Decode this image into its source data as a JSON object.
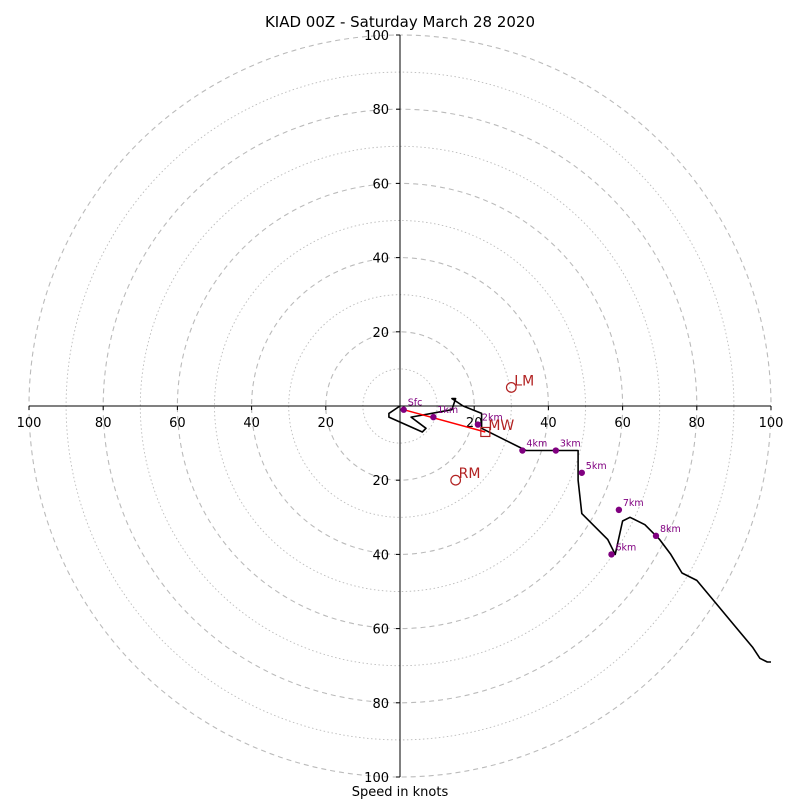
{
  "chart_data": {
    "type": "hodograph",
    "title": "KIAD 00Z - Saturday March 28 2020",
    "xlabel": "Speed in knots",
    "range_max": 100,
    "ring_major_step": 20,
    "ring_minor_step": 10,
    "axis_tick_labels": [
      "100",
      "80",
      "60",
      "40",
      "20",
      "",
      "20",
      "40",
      "60",
      "80",
      "100"
    ],
    "grid": true,
    "colors": {
      "trace": "#000000",
      "height_points": "#800080",
      "motion": "#b22222",
      "mean_wind_line": "#ff0000",
      "grid": "#bbbbbb"
    },
    "hodograph_trace": [
      [
        0,
        0
      ],
      [
        -3,
        -2
      ],
      [
        -3,
        -3
      ],
      [
        6,
        -7
      ],
      [
        7,
        -6
      ],
      [
        3,
        -3
      ],
      [
        14,
        -1
      ],
      [
        15,
        2
      ],
      [
        14,
        2
      ],
      [
        17,
        0
      ],
      [
        22,
        -2
      ],
      [
        22,
        -5
      ],
      [
        22,
        -6
      ],
      [
        34,
        -12
      ],
      [
        42,
        -12
      ],
      [
        48,
        -12
      ],
      [
        48,
        -20
      ],
      [
        49,
        -29
      ],
      [
        56,
        -36
      ],
      [
        58,
        -40
      ],
      [
        60,
        -31
      ],
      [
        62,
        -30
      ],
      [
        66,
        -32
      ],
      [
        70,
        -36
      ],
      [
        73,
        -40
      ],
      [
        76,
        -45
      ],
      [
        80,
        -47
      ],
      [
        85,
        -53
      ],
      [
        90,
        -59
      ],
      [
        95,
        -65
      ],
      [
        97,
        -68
      ],
      [
        99,
        -69
      ],
      [
        100,
        -69
      ]
    ],
    "height_markers": [
      {
        "label": "Sfc",
        "u": 1,
        "v": -1
      },
      {
        "label": "1km",
        "u": 9,
        "v": -3
      },
      {
        "label": "2km",
        "u": 21,
        "v": -5
      },
      {
        "label": "3km",
        "u": 42,
        "v": -12
      },
      {
        "label": "4km",
        "u": 33,
        "v": -12
      },
      {
        "label": "5km",
        "u": 49,
        "v": -18
      },
      {
        "label": "6km",
        "u": 57,
        "v": -40
      },
      {
        "label": "7km",
        "u": 59,
        "v": -28
      },
      {
        "label": "8km",
        "u": 69,
        "v": -35
      }
    ],
    "storm_motion": [
      {
        "label": "LM",
        "u": 30,
        "v": 5,
        "marker": "circle"
      },
      {
        "label": "RM",
        "u": 15,
        "v": -20,
        "marker": "circle"
      },
      {
        "label": "MW",
        "u": 23,
        "v": -7,
        "marker": "square"
      }
    ],
    "mean_wind_vector": {
      "from": [
        1,
        -1
      ],
      "to": [
        23,
        -7
      ]
    }
  }
}
